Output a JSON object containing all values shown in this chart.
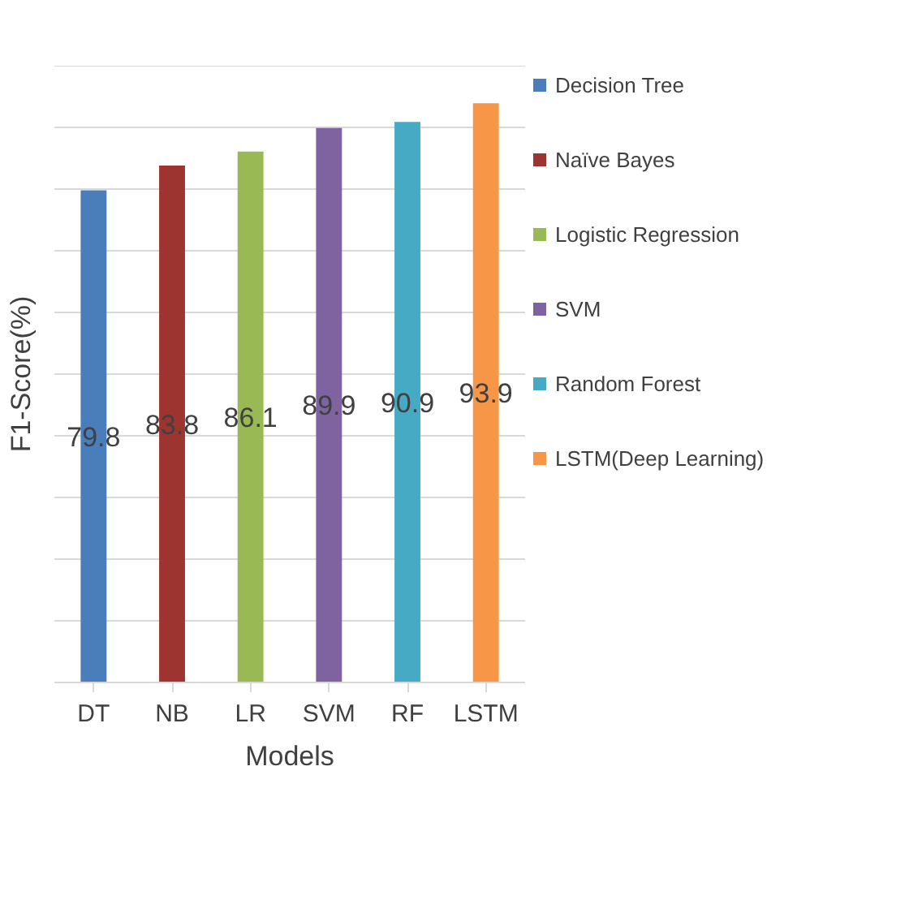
{
  "chart_data": {
    "type": "bar",
    "xlabel": "Models",
    "ylabel": "F1-Score(%)",
    "categories": [
      "DT",
      "NB",
      "LR",
      "SVM",
      "RF",
      "LSTM"
    ],
    "stacked": true,
    "data_labels": true,
    "ylim": [
      0,
      100
    ],
    "yticks": [
      {
        "value": 0,
        "label": null
      },
      {
        "value": 10,
        "label": null
      },
      {
        "value": 20,
        "label": null
      },
      {
        "value": 30,
        "label": null
      },
      {
        "value": 40,
        "label": null
      },
      {
        "value": 50,
        "label": null
      },
      {
        "value": 60,
        "label": null
      },
      {
        "value": 70,
        "label": null
      },
      {
        "value": 80,
        "label": null
      },
      {
        "value": 90,
        "label": null
      },
      {
        "value": 100,
        "label": null
      }
    ],
    "grid": "y",
    "legend": "right",
    "series": [
      {
        "name": "Decision Tree",
        "color": "#4a7ebb",
        "values": [
          79.8,
          null,
          null,
          null,
          null,
          null
        ]
      },
      {
        "name": "Naïve Bayes",
        "color": "#9e3430",
        "values": [
          null,
          83.8,
          null,
          null,
          null,
          null
        ]
      },
      {
        "name": "Logistic Regression",
        "color": "#98b954",
        "values": [
          null,
          null,
          86.1,
          null,
          null,
          null
        ]
      },
      {
        "name": "SVM",
        "color": "#7f63a1",
        "values": [
          null,
          null,
          null,
          89.9,
          null,
          null
        ]
      },
      {
        "name": "Random Forest",
        "color": "#46aac5",
        "values": [
          null,
          null,
          null,
          null,
          90.9,
          null
        ]
      },
      {
        "name": "LSTM(Deep Learning)",
        "color": "#f79646",
        "values": [
          null,
          null,
          null,
          null,
          null,
          93.9
        ]
      }
    ]
  }
}
